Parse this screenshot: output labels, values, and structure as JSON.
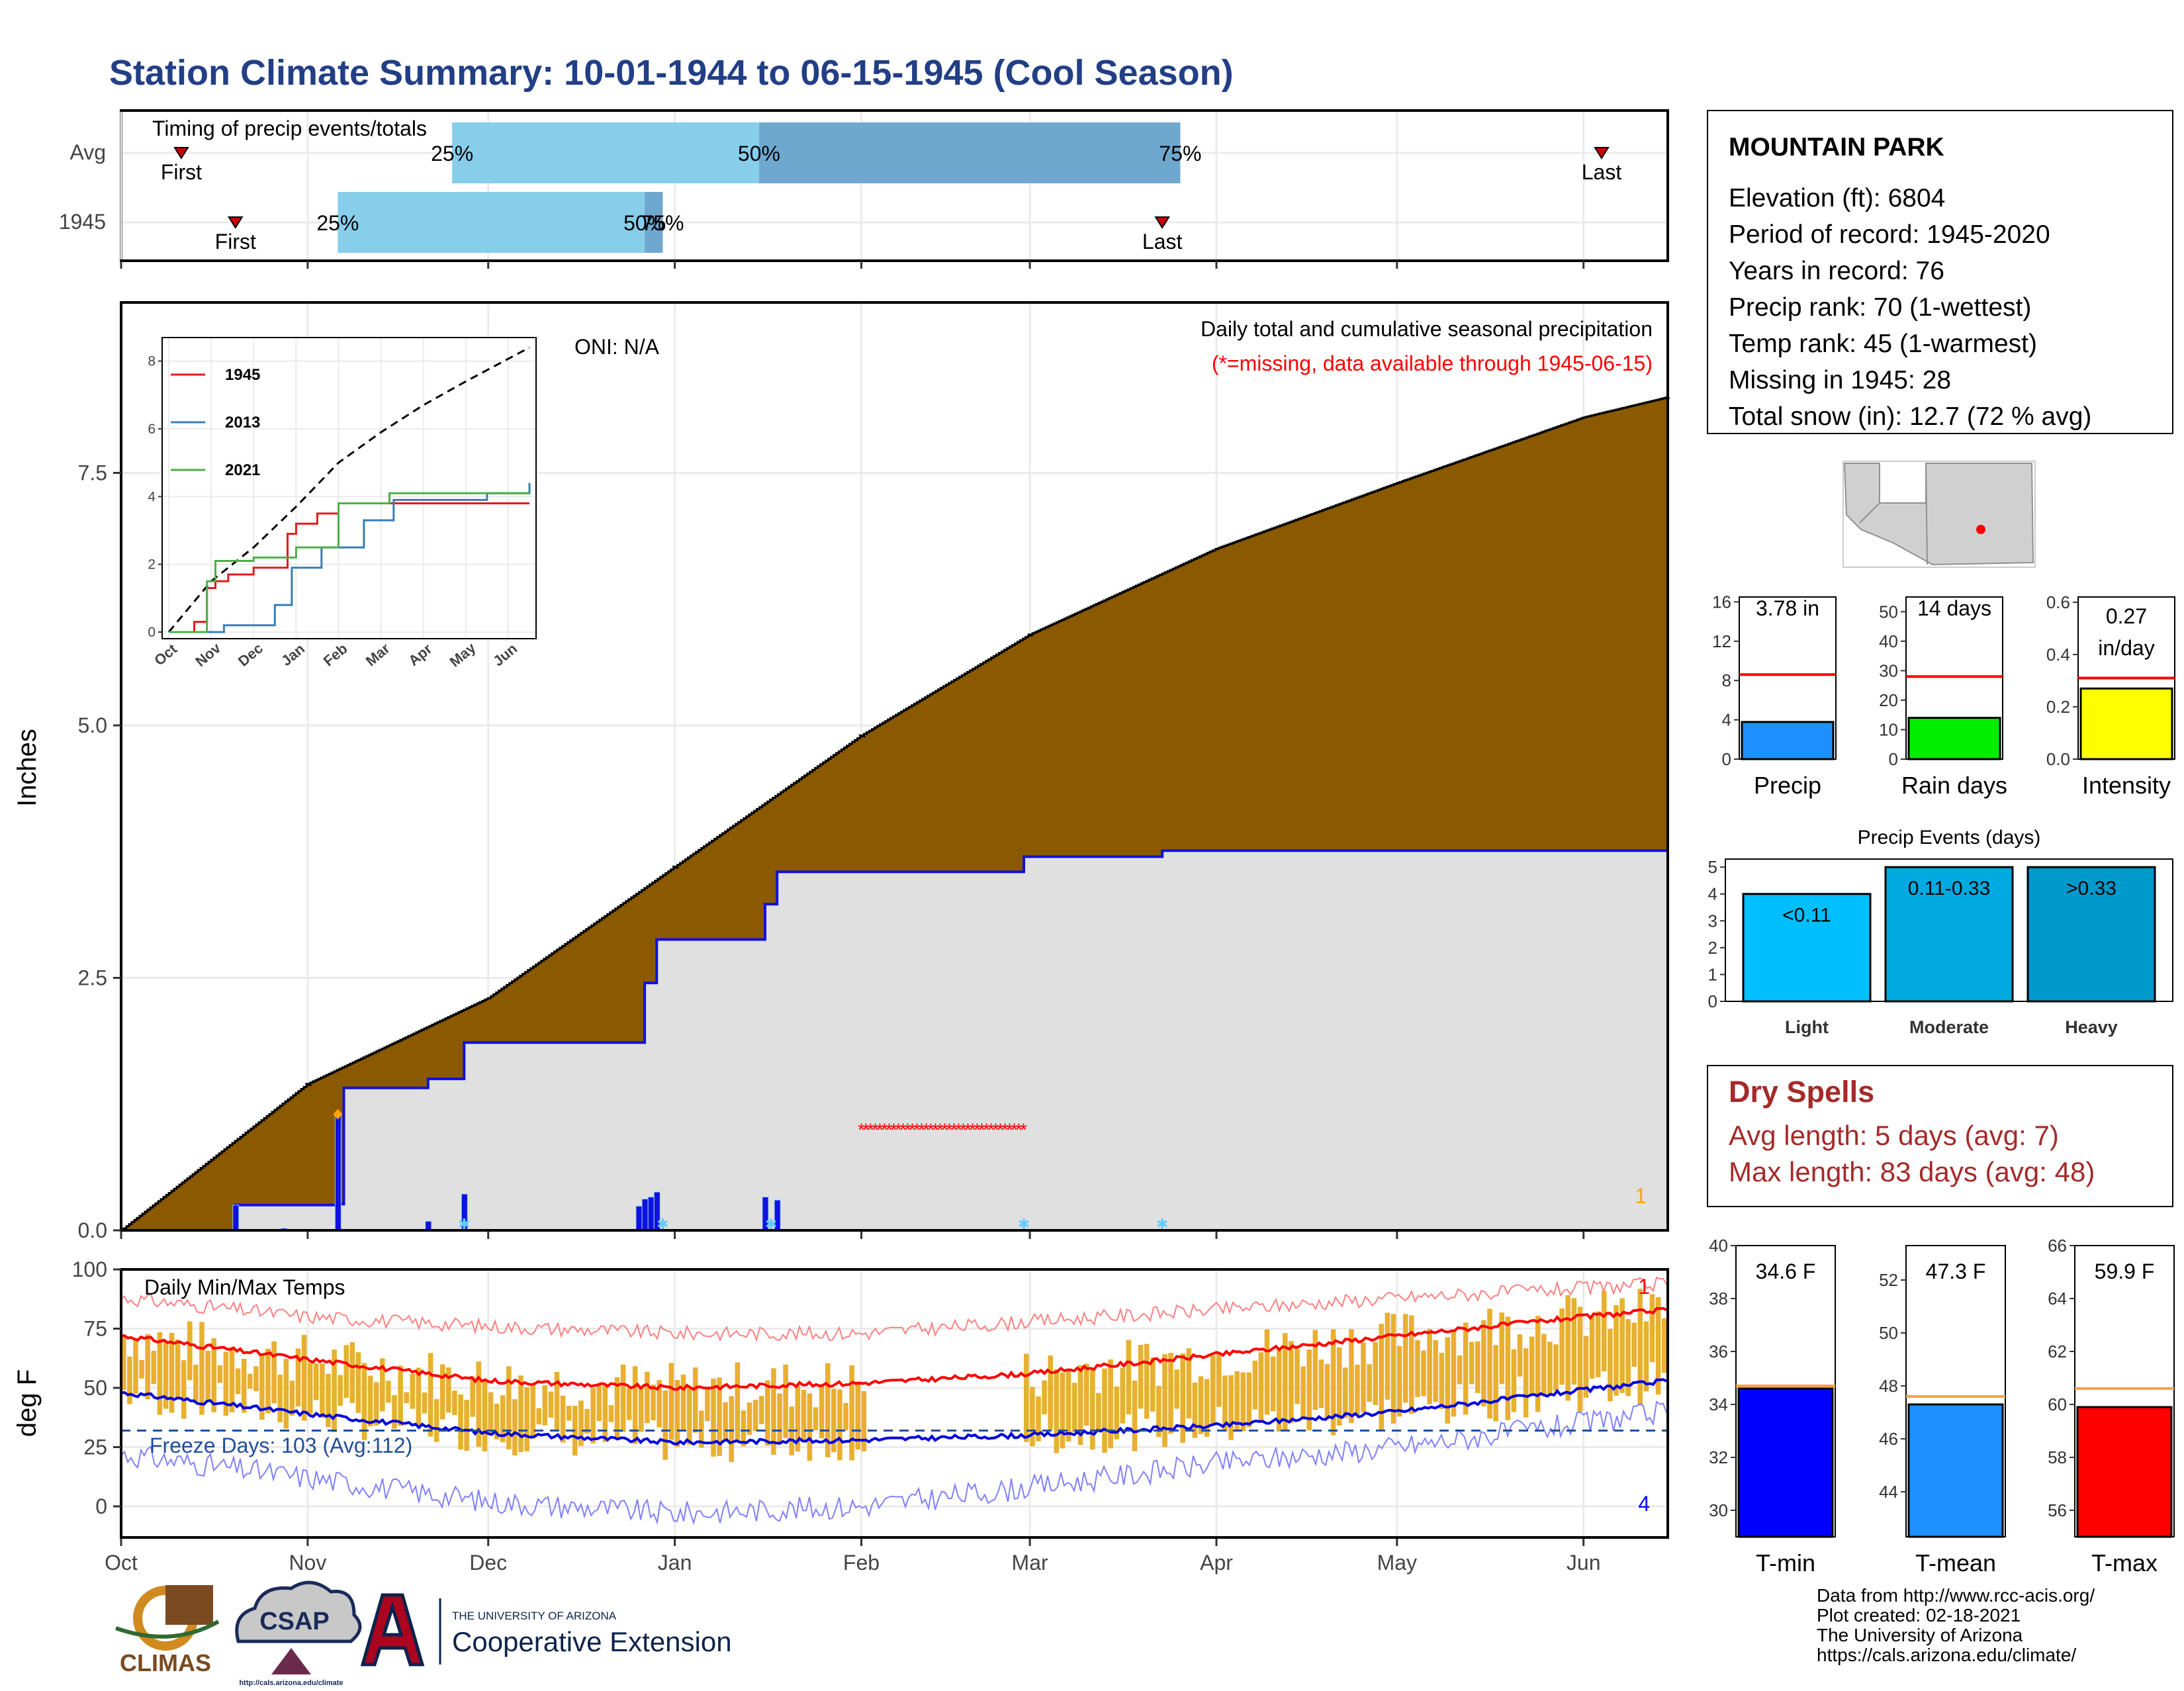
{
  "title": "Station Climate Summary: 10-01-1944 to 06-15-1945 (Cool Season)",
  "colors": {
    "title": "#223f86",
    "precip_fill": "#8b5a00",
    "grey_fill": "#e0e0e0",
    "blue_line": "#1010e0",
    "timing_light": "#87ceeb",
    "timing_dark": "#6fa8cf",
    "temp_bar": "#e8b030",
    "red": "#ff0000",
    "dry": "#a52a2a",
    "tmin": "#0000ff",
    "tmean": "#1e90ff",
    "tmax": "#ff0000",
    "rain_days": "#00ee00",
    "intensity": "#ffff00",
    "light": "#00bfff",
    "moderate": "#00aae0",
    "heavy": "#0099cc"
  },
  "timing": {
    "title": "Timing of precip events/totals",
    "rows": [
      {
        "label": "Avg",
        "first_label": "First",
        "last_label": "Last",
        "first": "1944-10-11",
        "last": "1945-06-04",
        "p25": "1944-11-25",
        "p50": "1945-01-15",
        "p75": "1945-03-26",
        "p25_label": "25%",
        "p50_label": "50%",
        "p75_label": "75%"
      },
      {
        "label": "1945",
        "first_label": "First",
        "last_label": "Last",
        "first": "1944-10-20",
        "last": "1945-03-23",
        "p25": "1944-11-06",
        "p50": "1944-12-27",
        "p75": "1944-12-30",
        "p25_label": "25%",
        "p50_label": "50%",
        "p75_label": "75%"
      }
    ]
  },
  "info": {
    "station": "MOUNTAIN PARK",
    "lines": [
      "Elevation (ft): 6804",
      "Period of record: 1945-2020",
      "Years in record: 76",
      "Precip rank: 70 (1-wettest)",
      "Temp rank: 45 (1-warmest)",
      "Missing in 1945: 28",
      "Total snow (in): 12.7 (72 % avg)"
    ]
  },
  "main": {
    "note1": "Daily total and cumulative seasonal precipitation",
    "note2": "(*=missing, data available through 1945-06-15)",
    "oni": "ONI: N/A",
    "ylabel": "Inches",
    "yticks": [
      "0.0",
      "2.5",
      "5.0",
      "7.5"
    ],
    "corner_count": "1"
  },
  "months": [
    "Oct",
    "Nov",
    "Dec",
    "Jan",
    "Feb",
    "Mar",
    "Apr",
    "May",
    "Jun"
  ],
  "temps": {
    "title": "Daily Min/Max Temps",
    "ylabel": "deg F",
    "yticks": [
      "0",
      "25",
      "50",
      "75",
      "100"
    ],
    "freeze": "Freeze Days: 103 (Avg:112)",
    "count_hi": "1",
    "count_lo": "4"
  },
  "bars": {
    "precip": {
      "value_label": "3.78 in",
      "label": "Precip",
      "value": 3.78,
      "avg": 8.6,
      "ticks": [
        "0",
        "4",
        "8",
        "12",
        "16"
      ]
    },
    "rain_days": {
      "value_label": "14 days",
      "label": "Rain days",
      "value": 14,
      "avg": 28,
      "ticks": [
        "0",
        "10",
        "20",
        "30",
        "40",
        "50"
      ]
    },
    "intensity": {
      "value_label1": "0.27",
      "value_label2": "in/day",
      "label": "Intensity",
      "value": 0.27,
      "avg": 0.31,
      "ticks": [
        "0.0",
        "0.2",
        "0.4",
        "0.6"
      ]
    }
  },
  "events": {
    "title": "Precip Events (days)",
    "ticks": [
      "0",
      "1",
      "2",
      "3",
      "4",
      "5"
    ],
    "items": [
      {
        "label": "Light",
        "range": "<0.11",
        "value": 4
      },
      {
        "label": "Moderate",
        "range": "0.11-0.33",
        "value": 5
      },
      {
        "label": "Heavy",
        "range": ">0.33",
        "value": 5
      }
    ]
  },
  "dry": {
    "title": "Dry Spells",
    "avg": "Avg length: 5 days (avg: 7)",
    "max": "Max length: 83 days (avg: 48)"
  },
  "tbars": {
    "tmin": {
      "value_label": "34.6 F",
      "label": "T-min",
      "value": 34.6,
      "avg": 34.7,
      "ticks": [
        "30",
        "32",
        "34",
        "36",
        "38",
        "40"
      ]
    },
    "tmean": {
      "value_label": "47.3 F",
      "label": "T-mean",
      "value": 47.3,
      "avg": 47.6,
      "ticks": [
        "44",
        "46",
        "48",
        "50",
        "52"
      ]
    },
    "tmax": {
      "value_label": "59.9 F",
      "label": "T-max",
      "value": 59.9,
      "avg": 60.6,
      "ticks": [
        "56",
        "58",
        "60",
        "62",
        "64",
        "66"
      ]
    }
  },
  "credits": [
    "Data from http://www.rcc-acis.org/",
    "Plot created: 02-18-2021",
    "The University of Arizona",
    "https://cals.arizona.edu/climate/"
  ],
  "logos": {
    "climas": "CLIMAS",
    "csap": "CSAP",
    "csap_url": "http://cals.arizona.edu/climate",
    "ua_top": "THE UNIVERSITY OF ARIZONA",
    "ua_main": "Cooperative Extension"
  },
  "chart_data": [
    {
      "type": "area",
      "title": "Daily total and cumulative seasonal precipitation",
      "ylabel": "Inches",
      "ylim": [
        0,
        9.2
      ],
      "x_range": [
        "1944-10-01",
        "1945-06-15"
      ],
      "series": [
        {
          "name": "Average cumulative",
          "x": [
            "1944-10-01",
            "1944-11-01",
            "1944-12-01",
            "1945-01-01",
            "1945-02-01",
            "1945-03-01",
            "1945-04-01",
            "1945-05-01",
            "1945-06-01",
            "1945-06-15"
          ],
          "values": [
            0.0,
            1.45,
            2.3,
            3.6,
            4.9,
            5.9,
            6.75,
            7.4,
            8.05,
            8.25
          ]
        },
        {
          "name": "1945 cumulative",
          "x": [
            "1944-10-01",
            "1944-10-20",
            "1944-11-06",
            "1944-11-07",
            "1944-11-21",
            "1944-11-27",
            "1944-12-26",
            "1944-12-27",
            "1944-12-29",
            "1945-01-16",
            "1945-01-18",
            "1945-02-28",
            "1945-03-23",
            "1945-06-15"
          ],
          "values": [
            0.0,
            0.25,
            0.26,
            1.41,
            1.5,
            1.86,
            1.86,
            2.45,
            2.88,
            3.23,
            3.55,
            3.7,
            3.76,
            3.78
          ]
        },
        {
          "name": "Daily precipitation",
          "x": [
            "1944-10-20",
            "1944-10-28",
            "1944-11-06",
            "1944-11-21",
            "1944-11-27",
            "1944-12-26",
            "1944-12-27",
            "1944-12-28",
            "1944-12-29",
            "1945-01-16",
            "1945-01-18"
          ],
          "values": [
            0.25,
            0.02,
            1.15,
            0.09,
            0.36,
            0.24,
            0.31,
            0.33,
            0.38,
            0.33,
            0.3
          ]
        }
      ],
      "missing": {
        "start": "1945-02-01",
        "end": "1945-02-28",
        "y": 1.0
      }
    },
    {
      "type": "line",
      "inset": true,
      "x_labels": [
        "Oct",
        "Nov",
        "Dec",
        "Jan",
        "Feb",
        "Mar",
        "Apr",
        "May",
        "Jun"
      ],
      "ylim": [
        0,
        8.5
      ],
      "y_ticks": [
        0,
        2,
        4,
        6,
        8
      ],
      "series": [
        {
          "name": "Average",
          "dashed": true,
          "x": [
            0,
            1,
            2,
            3,
            4,
            5,
            6,
            7,
            8.5
          ],
          "values": [
            0.0,
            1.5,
            2.5,
            3.7,
            5.0,
            5.9,
            6.7,
            7.4,
            8.4
          ]
        },
        {
          "name": "1945",
          "x": [
            0,
            0.6,
            0.9,
            1.1,
            1.4,
            2.0,
            2.8,
            3.0,
            3.5,
            4.0,
            8.5
          ],
          "values": [
            0.0,
            0.3,
            1.3,
            1.5,
            1.7,
            1.9,
            2.9,
            3.2,
            3.5,
            3.8,
            3.8
          ]
        },
        {
          "name": "2013",
          "x": [
            0,
            1.3,
            2.5,
            2.9,
            3.6,
            4.6,
            5.3,
            7.5,
            8.5
          ],
          "values": [
            0.0,
            0.2,
            0.8,
            1.9,
            2.5,
            3.3,
            3.9,
            4.1,
            4.4
          ]
        },
        {
          "name": "2021",
          "x": [
            0,
            0.9,
            1.1,
            2.0,
            3.0,
            4.0,
            5.2,
            8.5
          ],
          "values": [
            0.0,
            1.5,
            2.1,
            2.2,
            2.5,
            3.8,
            4.1,
            4.1
          ]
        }
      ]
    },
    {
      "type": "line",
      "title": "Daily Min/Max Temps",
      "ylabel": "deg F",
      "ylim": [
        -12,
        104
      ],
      "series": [
        {
          "name": "Record high",
          "x": [
            "1944-10-01",
            "1944-11-01",
            "1944-12-01",
            "1945-01-01",
            "1945-02-01",
            "1945-03-01",
            "1945-04-01",
            "1945-05-01",
            "1945-06-01",
            "1945-06-15"
          ],
          "values": [
            88,
            80,
            76,
            73,
            73,
            78,
            83,
            88,
            92,
            94
          ]
        },
        {
          "name": "Average high",
          "x": [
            "1944-10-01",
            "1944-11-01",
            "1944-12-01",
            "1945-01-01",
            "1945-02-01",
            "1945-03-01",
            "1945-04-01",
            "1945-05-01",
            "1945-06-01",
            "1945-06-15"
          ],
          "values": [
            72,
            62,
            53,
            50,
            52,
            56,
            64,
            72,
            80,
            83
          ]
        },
        {
          "name": "Average low",
          "x": [
            "1944-10-01",
            "1944-11-01",
            "1944-12-01",
            "1945-01-01",
            "1945-02-01",
            "1945-03-01",
            "1945-04-01",
            "1945-05-01",
            "1945-06-01",
            "1945-06-15"
          ],
          "values": [
            48,
            39,
            31,
            27,
            28,
            30,
            34,
            40,
            49,
            53
          ]
        },
        {
          "name": "Record low",
          "x": [
            "1944-10-01",
            "1944-11-01",
            "1944-12-01",
            "1945-01-01",
            "1945-02-01",
            "1945-03-01",
            "1945-04-01",
            "1945-05-01",
            "1945-06-01",
            "1945-06-15"
          ],
          "values": [
            22,
            12,
            2,
            -3,
            0,
            8,
            18,
            25,
            35,
            40
          ]
        }
      ],
      "observed_range": {
        "x_range": [
          "1944-10-01",
          "1945-06-15"
        ],
        "max_f": [
          50,
          95
        ],
        "min_f": [
          10,
          45
        ]
      },
      "freeze_line": 32
    },
    {
      "type": "bar",
      "categories": [
        "Light",
        "Moderate",
        "Heavy"
      ],
      "values": [
        4,
        5,
        5
      ],
      "title": "Precip Events (days)",
      "ylim": [
        0,
        5.3
      ]
    }
  ]
}
